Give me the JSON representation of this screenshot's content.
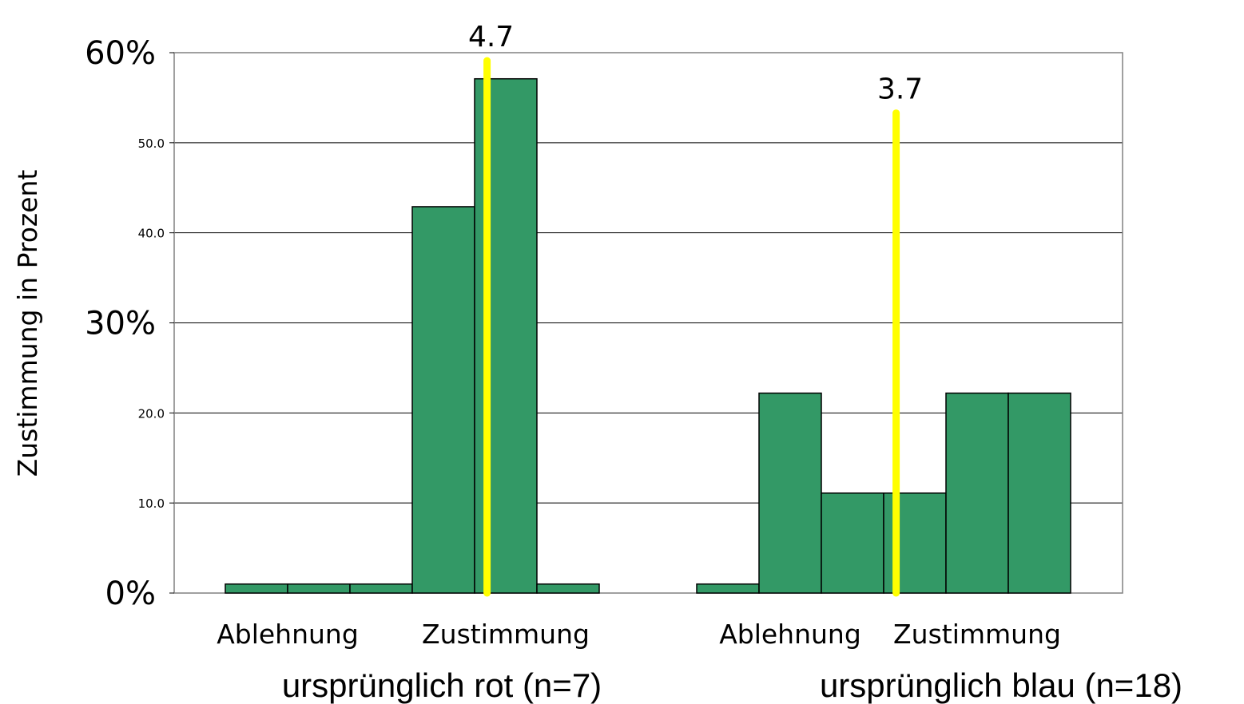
{
  "chart_data": {
    "type": "bar",
    "ylabel": "Zustimmung in Prozent",
    "ylim": [
      0,
      60
    ],
    "y_ticks": [
      {
        "value": 0,
        "label": "0%",
        "style": "big"
      },
      {
        "value": 10,
        "label": "10.0",
        "style": "small"
      },
      {
        "value": 20,
        "label": "20.0",
        "style": "small"
      },
      {
        "value": 30,
        "label": "30%",
        "style": "big"
      },
      {
        "value": 40,
        "label": "40.0",
        "style": "small"
      },
      {
        "value": 50,
        "label": "50.0",
        "style": "small"
      },
      {
        "value": 60,
        "label": "60%",
        "style": "big"
      }
    ],
    "grid": true,
    "bar_color": "#339966",
    "mean_line_color": "#ffff00",
    "groups": [
      {
        "name": "ursprünglich rot (n=7)",
        "scale": [
          1,
          2,
          3,
          4,
          5,
          6
        ],
        "values": [
          1,
          1,
          1,
          42.9,
          57.1,
          1
        ],
        "mean": 4.7,
        "mean_label": "4.7",
        "scale_labels": [
          {
            "label": "Ablehnung",
            "position": 1.5
          },
          {
            "label": "Zustimmung",
            "position": 5
          }
        ]
      },
      {
        "name": "ursprünglich blau (n=18)",
        "scale": [
          1,
          2,
          3,
          4,
          5,
          6
        ],
        "values": [
          1,
          22.2,
          11.1,
          11.1,
          22.2,
          22.2
        ],
        "mean": 3.7,
        "mean_label": "3.7",
        "scale_labels": [
          {
            "label": "Ablehnung",
            "position": 2
          },
          {
            "label": "Zustimmung",
            "position": 5
          }
        ]
      }
    ]
  }
}
